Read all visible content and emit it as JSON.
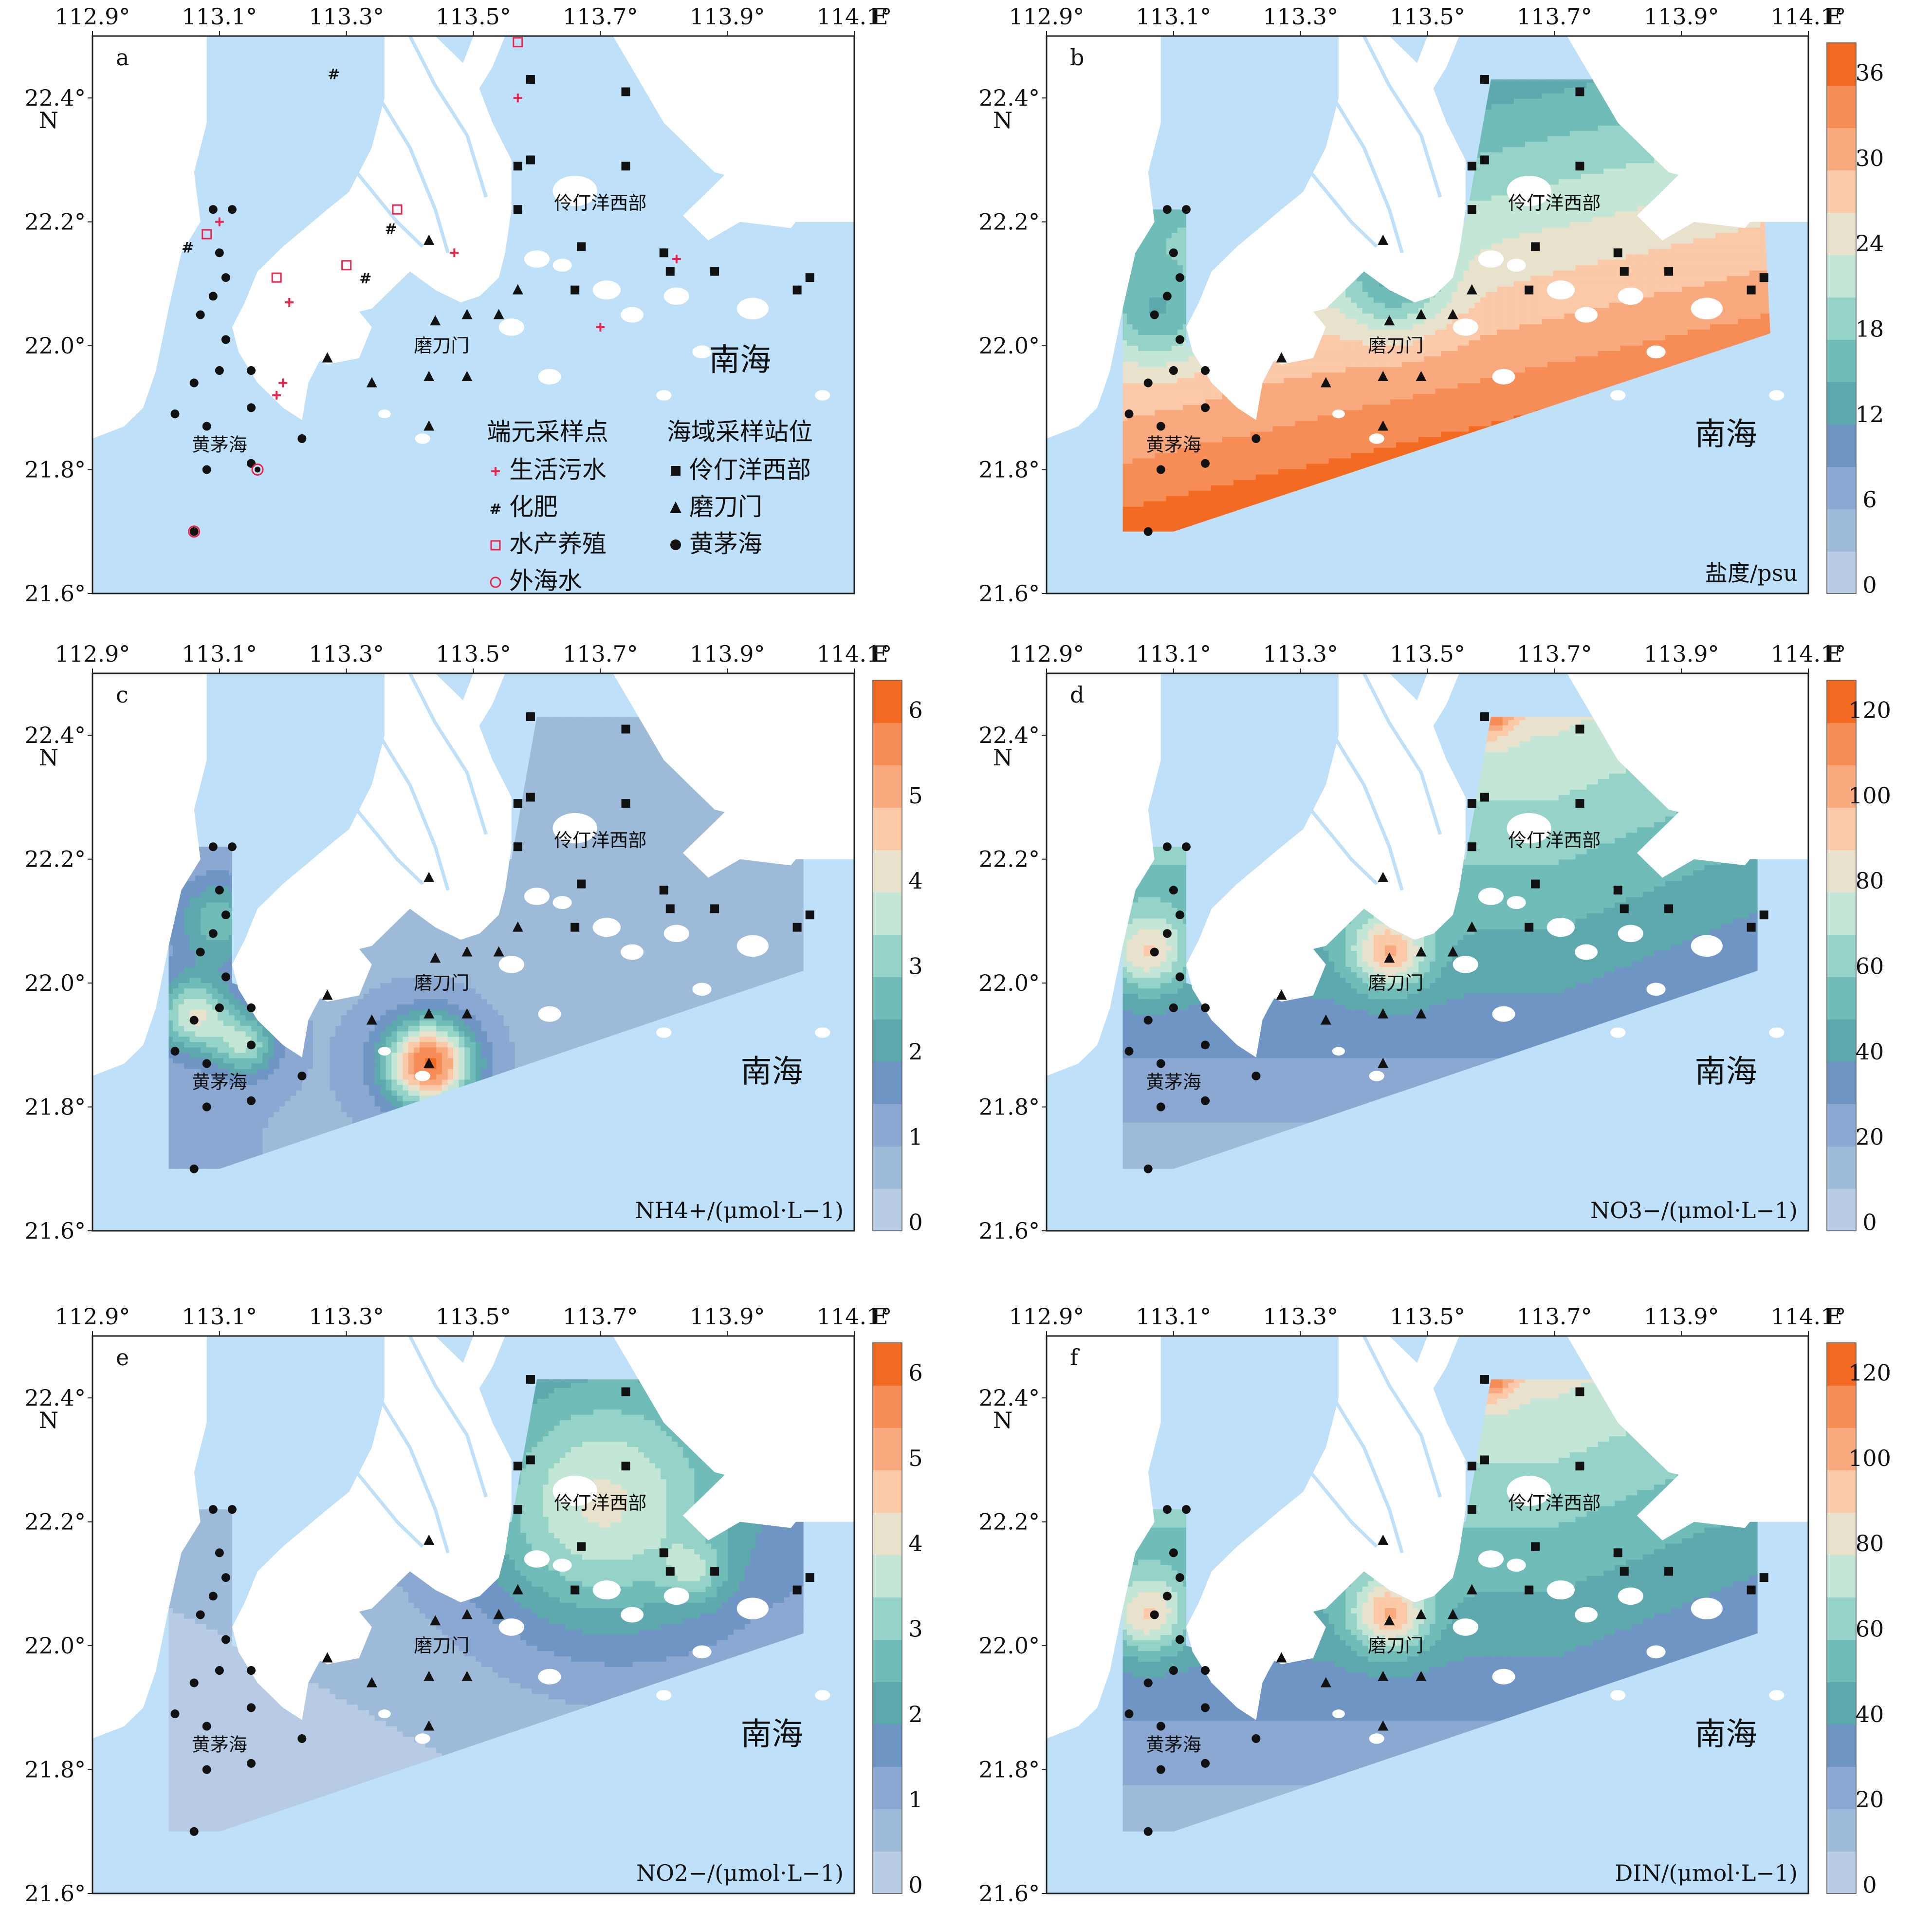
{
  "colors": {
    "sea": "#bfe0f9",
    "land": "#ffffff",
    "river": "#bfe0f9",
    "sewage": "#e8244a",
    "sea_label": "#3f72b6",
    "scale": [
      "#b7cbe4",
      "#9ebad9",
      "#8aa8d2",
      "#6f95c4",
      "#5ea9ad",
      "#6fbcb8",
      "#95d3c8",
      "#c4e6d6",
      "#e8e1cc",
      "#fbc9a8",
      "#f9a97e",
      "#f68c56",
      "#f36b22"
    ]
  },
  "axes": {
    "lon_ticks": [
      "112.9°",
      "113.1°",
      "113.3°",
      "113.5°",
      "113.7°",
      "113.9°",
      "114.1°"
    ],
    "lon_unit": "E",
    "lat_ticks": [
      "22.4°",
      "22.2°",
      "22.0°",
      "21.8°",
      "21.6°"
    ],
    "lat_unit": "N"
  },
  "places": {
    "lingding": "伶仃洋西部",
    "modaomen": "磨刀门",
    "huangmao": "黄茅海",
    "south_sea": "南海"
  },
  "legend": {
    "endmember_title": "端元采样点",
    "station_title": "海域采样站位",
    "endmembers": [
      {
        "symbol": "plus",
        "label": "生活污水"
      },
      {
        "symbol": "hash",
        "label": "化肥"
      },
      {
        "symbol": "square-open",
        "label": "水产养殖"
      },
      {
        "symbol": "circle-open",
        "label": "外海水"
      }
    ],
    "stations": [
      {
        "symbol": "square",
        "label": "伶仃洋西部"
      },
      {
        "symbol": "triangle",
        "label": "磨刀门"
      },
      {
        "symbol": "circle",
        "label": "黄茅海"
      }
    ]
  },
  "panels": [
    {
      "letter": "a",
      "variable": "",
      "colorbar": null
    },
    {
      "letter": "b",
      "variable": "盐度/psu",
      "colorbar": [
        "36",
        "30",
        "24",
        "18",
        "12",
        "6",
        "0"
      ]
    },
    {
      "letter": "c",
      "variable": "NH4+/(μmol·L−1)",
      "colorbar": [
        "6",
        "5",
        "4",
        "3",
        "2",
        "1",
        "0"
      ]
    },
    {
      "letter": "d",
      "variable": "NO3−/(μmol·L−1)",
      "colorbar": [
        "120",
        "100",
        "80",
        "60",
        "40",
        "20",
        "0"
      ]
    },
    {
      "letter": "e",
      "variable": "NO2−/(μmol·L−1)",
      "colorbar": [
        "6",
        "5",
        "4",
        "3",
        "2",
        "1",
        "0"
      ]
    },
    {
      "letter": "f",
      "variable": "DIN/(μmol·L−1)",
      "colorbar": [
        "120",
        "100",
        "80",
        "60",
        "40",
        "20",
        "0"
      ]
    }
  ],
  "stations": {
    "lingding": [
      [
        113.59,
        22.43
      ],
      [
        113.74,
        22.41
      ],
      [
        113.57,
        22.29
      ],
      [
        113.59,
        22.3
      ],
      [
        113.74,
        22.29
      ],
      [
        113.57,
        22.22
      ],
      [
        113.67,
        22.16
      ],
      [
        113.8,
        22.15
      ],
      [
        113.81,
        22.12
      ],
      [
        113.88,
        22.12
      ],
      [
        114.01,
        22.09
      ],
      [
        114.03,
        22.11
      ],
      [
        113.66,
        22.09
      ]
    ],
    "modaomen": [
      [
        113.43,
        22.17
      ],
      [
        113.44,
        22.04
      ],
      [
        113.49,
        22.05
      ],
      [
        113.54,
        22.05
      ],
      [
        113.57,
        22.09
      ],
      [
        113.27,
        21.98
      ],
      [
        113.34,
        21.94
      ],
      [
        113.43,
        21.95
      ],
      [
        113.49,
        21.95
      ],
      [
        113.43,
        21.87
      ]
    ],
    "huangmao": [
      [
        113.09,
        22.22
      ],
      [
        113.12,
        22.22
      ],
      [
        113.1,
        22.15
      ],
      [
        113.11,
        22.11
      ],
      [
        113.09,
        22.08
      ],
      [
        113.07,
        22.05
      ],
      [
        113.11,
        22.01
      ],
      [
        113.1,
        21.96
      ],
      [
        113.06,
        21.94
      ],
      [
        113.15,
        21.96
      ],
      [
        113.03,
        21.89
      ],
      [
        113.08,
        21.87
      ],
      [
        113.15,
        21.9
      ],
      [
        113.23,
        21.85
      ],
      [
        113.08,
        21.8
      ],
      [
        113.15,
        21.81
      ],
      [
        113.06,
        21.7
      ]
    ]
  },
  "endmember_points": {
    "sewage": [
      [
        113.1,
        22.2
      ],
      [
        113.57,
        22.4
      ],
      [
        113.47,
        22.15
      ],
      [
        113.21,
        22.07
      ],
      [
        113.19,
        21.92
      ],
      [
        113.2,
        21.94
      ],
      [
        113.7,
        22.03
      ],
      [
        113.82,
        22.14
      ]
    ],
    "fertilizer": [
      [
        113.05,
        22.16
      ],
      [
        113.28,
        22.44
      ],
      [
        113.37,
        22.19
      ],
      [
        113.33,
        22.11
      ]
    ],
    "aquaculture": [
      [
        113.08,
        22.18
      ],
      [
        113.19,
        22.11
      ],
      [
        113.3,
        22.13
      ],
      [
        113.38,
        22.22
      ],
      [
        113.57,
        22.49
      ]
    ],
    "offshore": [
      [
        113.16,
        21.8
      ],
      [
        113.06,
        21.7
      ]
    ]
  }
}
